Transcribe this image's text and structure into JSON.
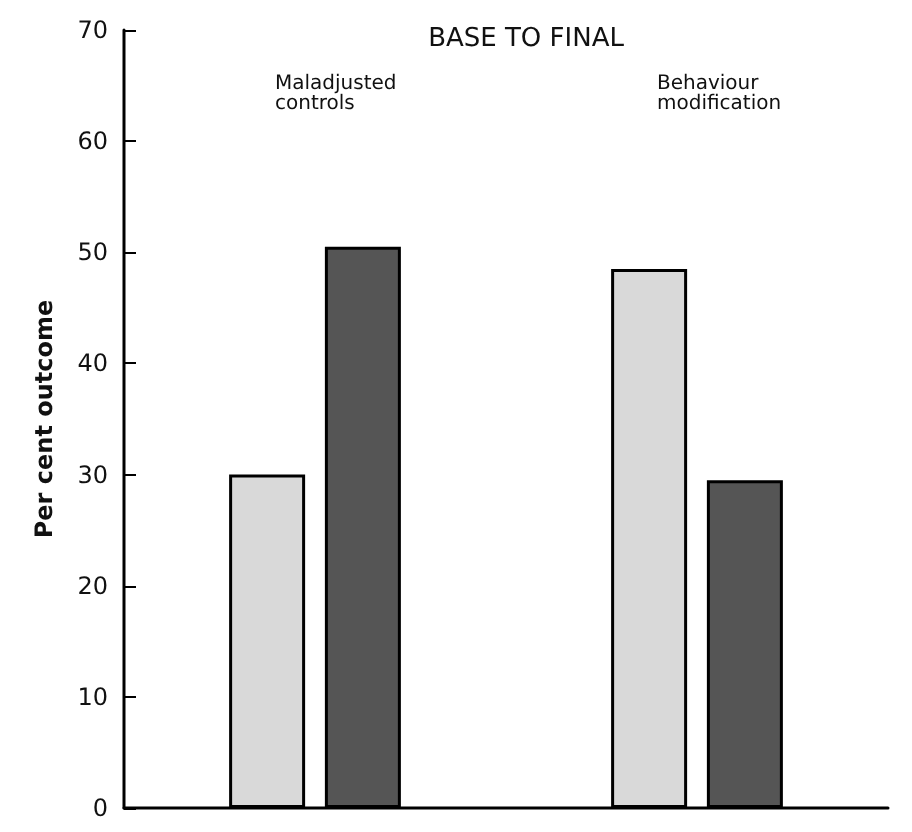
{
  "chart_data": {
    "type": "bar",
    "title": "BASE TO FINAL",
    "ylabel": "Per cent outcome",
    "categories": [
      "Maladjusted\ncontrols",
      "Behaviour\nmodification"
    ],
    "series": [
      {
        "color": "#d9d9d9",
        "values": [
          30,
          48.5
        ]
      },
      {
        "color": "#555555",
        "values": [
          50.5,
          29.5
        ]
      }
    ],
    "ylim": [
      0,
      70
    ],
    "yticks": [
      0,
      10,
      20,
      30,
      40,
      50,
      60,
      70
    ],
    "grid": false
  }
}
